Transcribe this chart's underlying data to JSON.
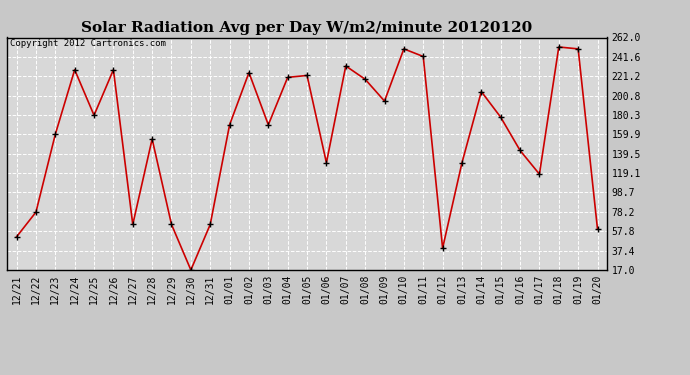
{
  "title": "Solar Radiation Avg per Day W/m2/minute 20120120",
  "copyright": "Copyright 2012 Cartronics.com",
  "x_labels": [
    "12/21",
    "12/22",
    "12/23",
    "12/24",
    "12/25",
    "12/26",
    "12/27",
    "12/28",
    "12/29",
    "12/30",
    "12/31",
    "01/01",
    "01/02",
    "01/03",
    "01/04",
    "01/05",
    "01/06",
    "01/07",
    "01/08",
    "01/09",
    "01/10",
    "01/11",
    "01/12",
    "01/13",
    "01/14",
    "01/15",
    "01/16",
    "01/17",
    "01/18",
    "01/19",
    "01/20"
  ],
  "y_values": [
    52,
    78,
    160,
    228,
    180,
    228,
    65,
    155,
    65,
    17,
    65,
    170,
    225,
    170,
    220,
    222,
    130,
    232,
    218,
    195,
    250,
    242,
    40,
    130,
    205,
    178,
    143,
    118,
    252,
    250,
    60
  ],
  "y_ticks": [
    17.0,
    37.4,
    57.8,
    78.2,
    98.7,
    119.1,
    139.5,
    159.9,
    180.3,
    200.8,
    221.2,
    241.6,
    262.0
  ],
  "y_min": 17.0,
  "y_max": 262.0,
  "line_color": "#cc0000",
  "marker": "+",
  "bg_color": "#c8c8c8",
  "plot_bg": "#d8d8d8",
  "grid_color": "#ffffff",
  "title_fontsize": 11,
  "tick_fontsize": 7,
  "copyright_fontsize": 6.5
}
